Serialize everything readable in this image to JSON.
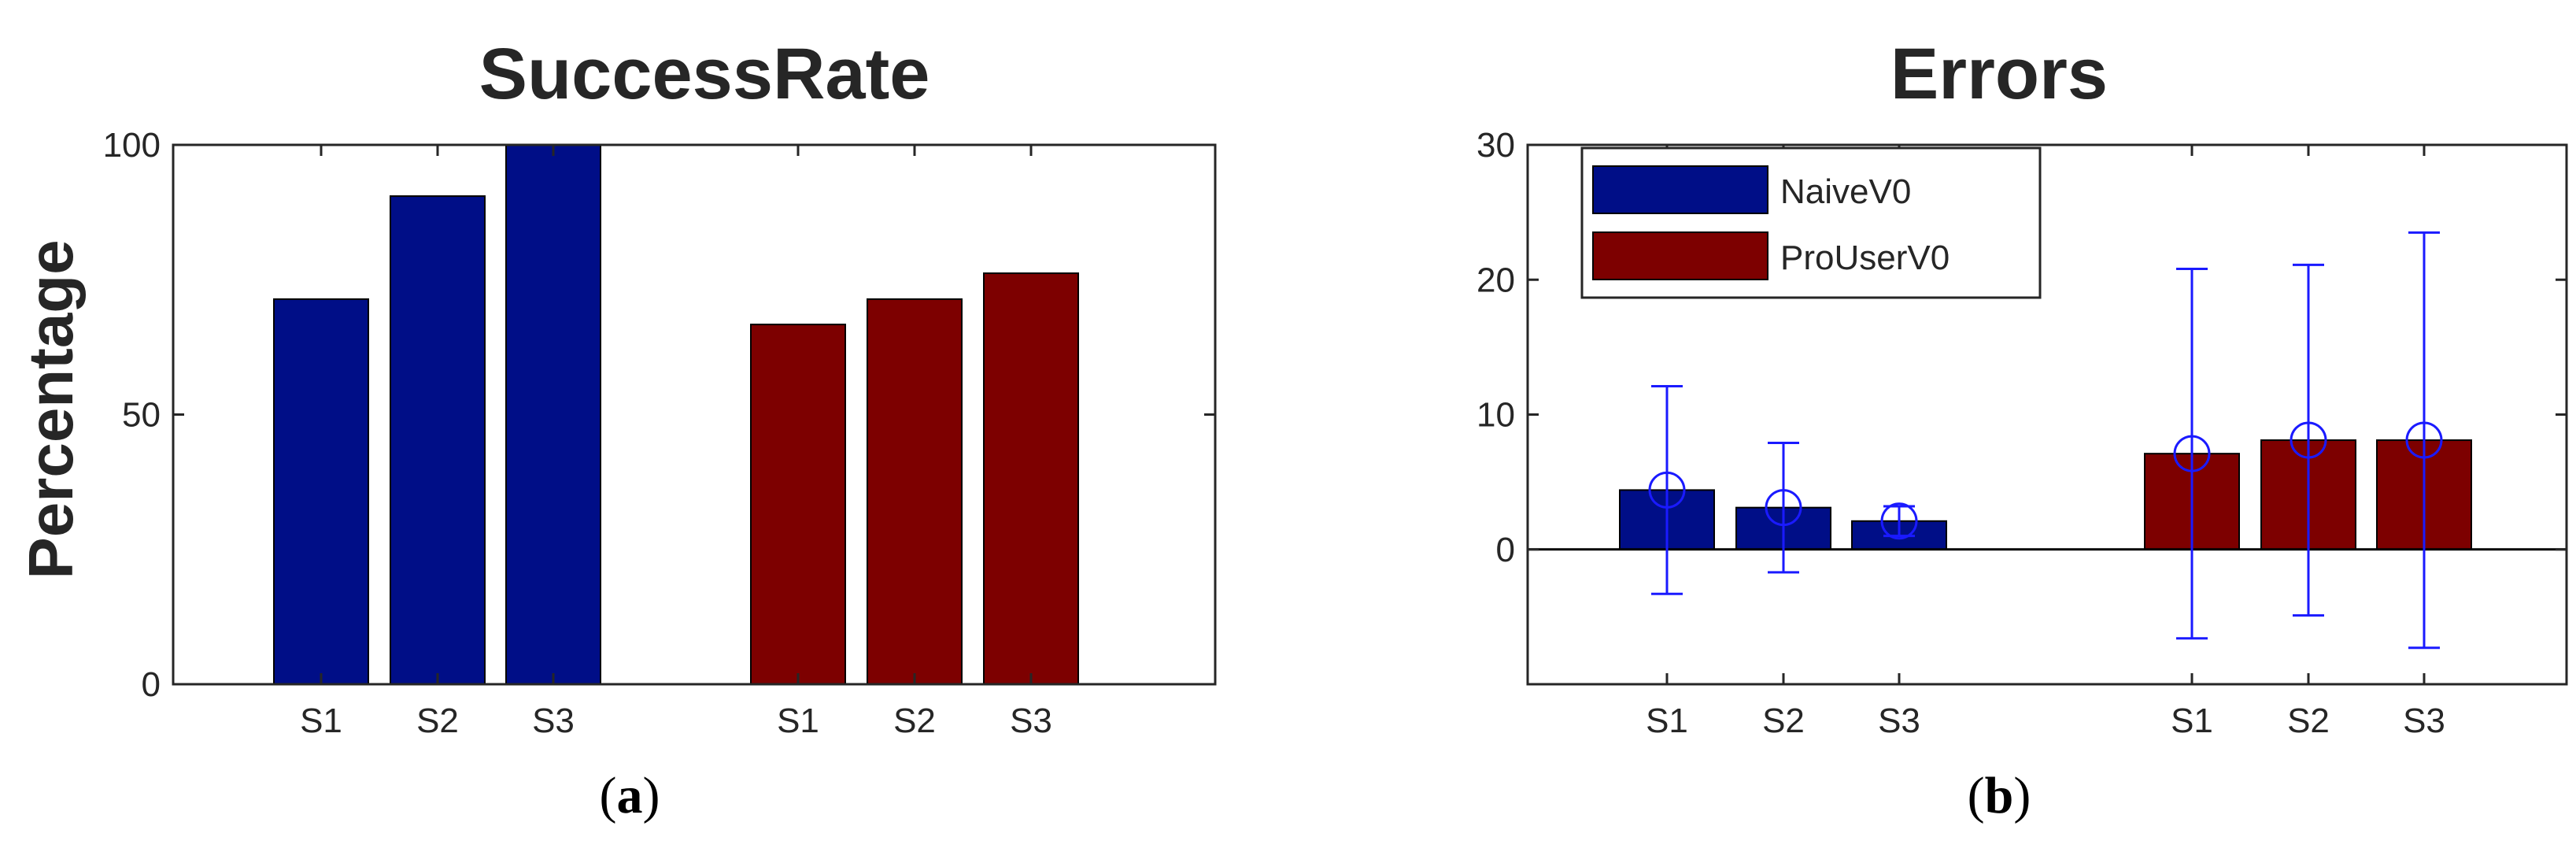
{
  "colors": {
    "series1": "#000e87",
    "series2": "#7d0000",
    "errorbar": "#1a1aff",
    "axis": "#262626"
  },
  "chart_data": [
    {
      "type": "bar",
      "title": "SuccessRate",
      "ylabel": "Percentage",
      "xlabel": "",
      "ylim": [
        0,
        100
      ],
      "yticks": [
        0,
        50,
        100
      ],
      "grid": false,
      "categories": [
        "S1",
        "S2",
        "S3",
        "S1",
        "S2",
        "S3"
      ],
      "groups": [
        {
          "series": "NaiveV0",
          "categories": [
            "S1",
            "S2",
            "S3"
          ],
          "values": [
            71.4,
            90.5,
            100
          ]
        },
        {
          "series": "ProUserV0",
          "categories": [
            "S1",
            "S2",
            "S3"
          ],
          "values": [
            66.7,
            71.4,
            76.2
          ]
        }
      ],
      "panel": {
        "label": "a",
        "open": "(",
        "close": ")"
      }
    },
    {
      "type": "bar",
      "title": "Errors",
      "ylabel": "",
      "xlabel": "",
      "ylim": [
        -10,
        30
      ],
      "yticks": [
        0,
        10,
        20,
        30
      ],
      "grid": false,
      "legend": {
        "position": "top-left",
        "entries": [
          "NaiveV0",
          "ProUserV0"
        ]
      },
      "categories": [
        "S1",
        "S2",
        "S3",
        "S1",
        "S2",
        "S3"
      ],
      "groups": [
        {
          "series": "NaiveV0",
          "categories": [
            "S1",
            "S2",
            "S3"
          ],
          "values": [
            4.4,
            3.1,
            2.1
          ],
          "means": [
            4.4,
            3.1,
            2.1
          ],
          "err_low": [
            -3.3,
            -1.7,
            1.0
          ],
          "err_high": [
            12.1,
            7.9,
            3.2
          ]
        },
        {
          "series": "ProUserV0",
          "categories": [
            "S1",
            "S2",
            "S3"
          ],
          "values": [
            7.1,
            8.1,
            8.1
          ],
          "means": [
            7.1,
            8.1,
            8.1
          ],
          "err_low": [
            -6.6,
            -4.9,
            -7.3
          ],
          "err_high": [
            20.8,
            21.1,
            23.5
          ]
        }
      ],
      "panel": {
        "label": "b",
        "open": "(",
        "close": ")"
      }
    }
  ]
}
